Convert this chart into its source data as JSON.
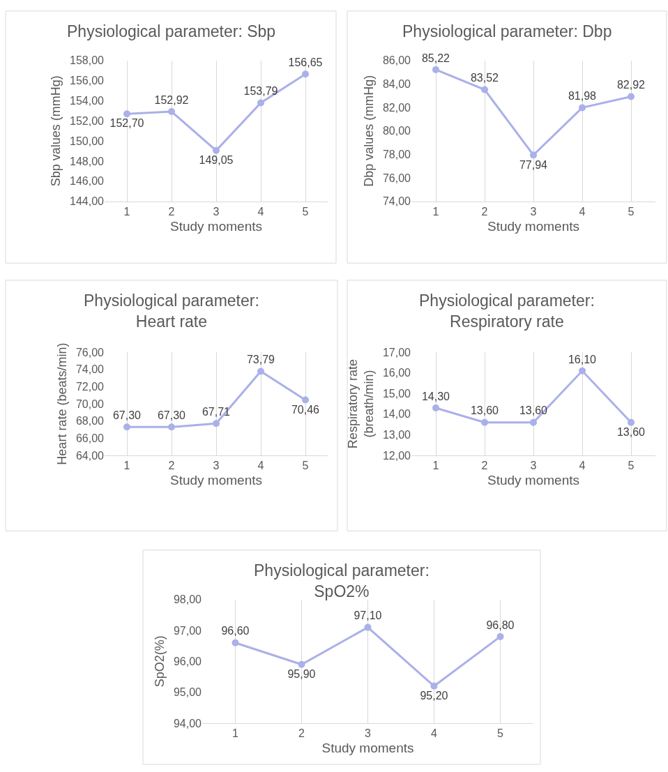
{
  "chart_data": [
    {
      "type": "line",
      "title": "Physiological parameter: Sbp",
      "xlabel": "Study moments",
      "ylabel": "Sbp values (mmHg)",
      "categories": [
        "1",
        "2",
        "3",
        "4",
        "5"
      ],
      "series": [
        {
          "color": "#aab0e8",
          "values": [
            152.7,
            152.92,
            149.05,
            153.79,
            156.65
          ],
          "value_labels": [
            "152,70",
            "152,92",
            "149,05",
            "153,79",
            "156,65"
          ]
        }
      ],
      "ylim": [
        144,
        158
      ],
      "yticks": [
        {
          "value": 144,
          "label": "144,00"
        },
        {
          "value": 146,
          "label": "146,00"
        },
        {
          "value": 148,
          "label": "148,00"
        },
        {
          "value": 150,
          "label": "150,00"
        },
        {
          "value": 152,
          "label": "152,00"
        },
        {
          "value": 154,
          "label": "154,00"
        },
        {
          "value": 156,
          "label": "156,00"
        },
        {
          "value": 158,
          "label": "158,00"
        }
      ],
      "grid": "x",
      "marker": "circle",
      "line_style": "solid"
    },
    {
      "type": "line",
      "title": "Physiological parameter: Dbp",
      "xlabel": "Study moments",
      "ylabel": "Dbp values (mmHg)",
      "categories": [
        "1",
        "2",
        "3",
        "4",
        "5"
      ],
      "series": [
        {
          "color": "#aab0e8",
          "values": [
            85.22,
            83.52,
            77.94,
            81.98,
            82.92
          ],
          "value_labels": [
            "85,22",
            "83,52",
            "77,94",
            "81,98",
            "82,92"
          ]
        }
      ],
      "ylim": [
        74,
        86
      ],
      "yticks": [
        {
          "value": 74,
          "label": "74,00"
        },
        {
          "value": 76,
          "label": "76,00"
        },
        {
          "value": 78,
          "label": "78,00"
        },
        {
          "value": 80,
          "label": "80,00"
        },
        {
          "value": 82,
          "label": "82,00"
        },
        {
          "value": 84,
          "label": "84,00"
        },
        {
          "value": 86,
          "label": "86,00"
        }
      ],
      "grid": "x",
      "marker": "circle",
      "line_style": "solid"
    },
    {
      "type": "line",
      "title": "Physiological parameter: Heart rate",
      "xlabel": "Study moments",
      "ylabel": "Heart rate (beats/min)",
      "categories": [
        "1",
        "2",
        "3",
        "4",
        "5"
      ],
      "series": [
        {
          "color": "#aab0e8",
          "values": [
            67.3,
            67.3,
            67.71,
            73.79,
            70.46
          ],
          "value_labels": [
            "67,30",
            "67,30",
            "67,71",
            "73,79",
            "70,46"
          ]
        }
      ],
      "ylim": [
        64,
        76
      ],
      "yticks": [
        {
          "value": 64,
          "label": "64,00"
        },
        {
          "value": 66,
          "label": "66,00"
        },
        {
          "value": 68,
          "label": "68,00"
        },
        {
          "value": 70,
          "label": "70,00"
        },
        {
          "value": 72,
          "label": "72,00"
        },
        {
          "value": 74,
          "label": "74,00"
        },
        {
          "value": 76,
          "label": "76,00"
        }
      ],
      "grid": "x",
      "marker": "circle",
      "line_style": "solid"
    },
    {
      "type": "line",
      "title": "Physiological parameter: Respiratory rate",
      "xlabel": "Study moments",
      "ylabel": "Respiratory rate (breath/min)",
      "categories": [
        "1",
        "2",
        "3",
        "4",
        "5"
      ],
      "series": [
        {
          "color": "#aab0e8",
          "values": [
            14.3,
            13.6,
            13.6,
            16.1,
            13.6
          ],
          "value_labels": [
            "14,30",
            "13,60",
            "13,60",
            "16,10",
            "13,60"
          ]
        }
      ],
      "ylim": [
        12,
        17
      ],
      "yticks": [
        {
          "value": 12,
          "label": "12,00"
        },
        {
          "value": 13,
          "label": "13,00"
        },
        {
          "value": 14,
          "label": "14,00"
        },
        {
          "value": 15,
          "label": "15,00"
        },
        {
          "value": 16,
          "label": "16,00"
        },
        {
          "value": 17,
          "label": "17,00"
        }
      ],
      "grid": "x",
      "marker": "circle",
      "line_style": "solid"
    },
    {
      "type": "line",
      "title": "Physiological parameter: SpO2%",
      "xlabel": "Study moments",
      "ylabel": "SpO2(%)",
      "categories": [
        "1",
        "2",
        "3",
        "4",
        "5"
      ],
      "series": [
        {
          "color": "#aab0e8",
          "values": [
            96.6,
            95.9,
            97.1,
            95.2,
            96.8
          ],
          "value_labels": [
            "96,60",
            "95,90",
            "97,10",
            "95,20",
            "96,80"
          ]
        }
      ],
      "ylim": [
        94,
        98
      ],
      "yticks": [
        {
          "value": 94,
          "label": "94,00"
        },
        {
          "value": 95,
          "label": "95,00"
        },
        {
          "value": 96,
          "label": "96,00"
        },
        {
          "value": 97,
          "label": "97,00"
        },
        {
          "value": 98,
          "label": "98,00"
        }
      ],
      "grid": "x",
      "marker": "circle",
      "line_style": "solid"
    }
  ]
}
